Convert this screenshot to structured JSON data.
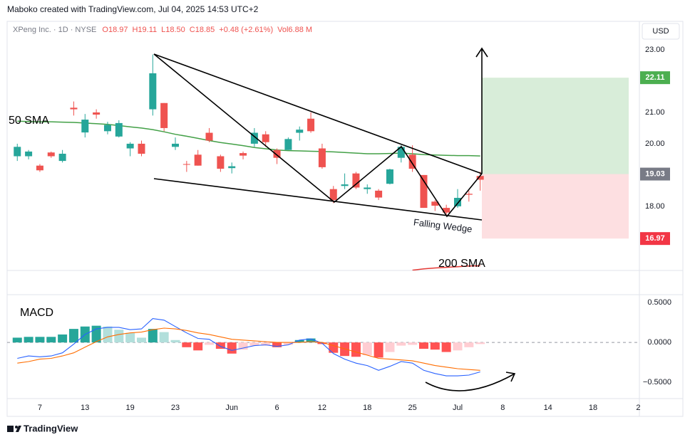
{
  "header": {
    "credit": "Maboko created with TradingView.com, Jul 04, 2025 14:53 UTC+2",
    "currency": "USD",
    "footer": "TradingView"
  },
  "chart_data": [
    {
      "type": "candlestick",
      "title": "XPeng Inc. · 1D · NYSE",
      "legend": [
        "O18.97",
        "H19.11",
        "L18.50",
        "C18.85",
        "+0.48 (+2.61%)",
        "Vol6.88 M"
      ],
      "up_color": "#26a69a",
      "down_color": "#ef5350",
      "open": [
        19.6,
        19.6,
        19.3,
        19.72,
        19.45,
        21.15,
        20.36,
        21.0,
        20.4,
        20.23,
        19.85,
        20.0,
        21.1,
        21.3,
        19.9,
        19.35,
        19.65,
        20.35,
        19.6,
        19.22,
        19.7,
        20.0,
        20.3,
        19.8,
        19.8,
        20.35,
        20.8,
        19.85,
        18.55,
        18.65,
        19.05,
        18.55,
        18.5,
        18.72,
        19.55,
        19.65,
        19.0,
        18.15,
        17.95,
        18.0,
        18.4,
        18.97
      ],
      "high": [
        20.0,
        19.8,
        19.35,
        19.75,
        19.8,
        21.35,
        20.95,
        21.1,
        20.7,
        20.75,
        20.05,
        20.1,
        22.85,
        21.3,
        20.2,
        19.45,
        19.8,
        20.5,
        19.65,
        19.4,
        19.75,
        20.5,
        20.4,
        19.85,
        20.2,
        20.55,
        21.0,
        20.0,
        18.65,
        19.05,
        19.1,
        18.7,
        18.55,
        19.2,
        19.95,
        19.95,
        19.0,
        18.2,
        18.05,
        18.55,
        18.5,
        19.11
      ],
      "low": [
        19.45,
        19.5,
        19.1,
        19.55,
        19.4,
        20.9,
        20.2,
        20.8,
        20.3,
        20.2,
        19.6,
        19.6,
        20.9,
        20.4,
        19.8,
        19.1,
        19.3,
        20.05,
        19.1,
        19.05,
        19.5,
        19.9,
        19.9,
        19.35,
        19.8,
        20.1,
        20.35,
        19.2,
        18.1,
        18.55,
        18.55,
        18.4,
        18.2,
        18.7,
        19.4,
        19.1,
        17.95,
        17.85,
        17.7,
        17.95,
        18.15,
        18.5
      ],
      "close": [
        19.9,
        19.75,
        19.15,
        19.6,
        19.68,
        21.1,
        20.77,
        20.93,
        20.6,
        20.66,
        20.0,
        19.68,
        22.25,
        20.5,
        20.0,
        19.33,
        19.3,
        20.1,
        19.2,
        19.28,
        19.62,
        20.35,
        20.05,
        19.55,
        20.15,
        20.45,
        20.4,
        19.25,
        18.2,
        18.7,
        18.6,
        18.6,
        18.28,
        19.18,
        19.9,
        19.2,
        17.95,
        18.02,
        17.8,
        18.27,
        18.37,
        18.85
      ],
      "series": [
        {
          "name": "50 SMA",
          "color": "#43a047",
          "values": [
            20.72,
            20.71,
            20.7,
            20.7,
            20.69,
            20.68,
            20.66,
            20.64,
            20.62,
            20.58,
            20.54,
            20.5,
            20.45,
            20.38,
            20.3,
            20.24,
            20.17,
            20.1,
            20.04,
            19.99,
            19.94,
            19.88,
            19.84,
            19.8,
            19.78,
            19.77,
            19.76,
            19.75,
            19.74,
            19.72,
            19.7,
            19.68,
            19.68,
            19.69,
            19.7,
            19.68,
            19.65,
            19.64,
            19.63,
            19.62,
            19.62,
            19.61
          ]
        },
        {
          "name": "200 SMA",
          "color": "#e53935",
          "values": [
            null,
            null,
            null,
            null,
            null,
            null,
            null,
            null,
            null,
            null,
            null,
            null,
            null,
            null,
            null,
            null,
            null,
            null,
            null,
            null,
            null,
            null,
            null,
            null,
            null,
            null,
            null,
            null,
            null,
            null,
            null,
            null,
            null,
            null,
            null,
            15.96,
            16.0,
            16.03,
            16.05,
            16.07,
            16.09,
            16.1
          ]
        }
      ],
      "levels": [
        22.11,
        19.03,
        16.97
      ],
      "level_colors": [
        "#4caf50",
        "#787b86",
        "#f23645"
      ],
      "annotations": [
        "Falling Wedge"
      ],
      "ylim": [
        15.95,
        23.91
      ],
      "yticks": [
        {
          "value": 18,
          "label": "18.00"
        },
        {
          "value": 20,
          "label": "20.00"
        },
        {
          "value": 21,
          "label": "21.00"
        },
        {
          "value": 23,
          "label": "23.00"
        }
      ]
    },
    {
      "type": "macd",
      "title": "MACD",
      "histogram": [
        0.06,
        0.07,
        0.07,
        0.07,
        0.1,
        0.17,
        0.2,
        0.21,
        0.2,
        0.16,
        0.12,
        0.06,
        0.17,
        0.13,
        0.03,
        -0.06,
        -0.1,
        -0.03,
        -0.08,
        -0.14,
        -0.09,
        -0.04,
        -0.04,
        -0.06,
        -0.03,
        0.03,
        0.05,
        -0.02,
        -0.13,
        -0.17,
        -0.18,
        -0.16,
        -0.19,
        -0.12,
        -0.04,
        -0.03,
        -0.08,
        -0.09,
        -0.12,
        -0.1,
        -0.06,
        -0.02
      ],
      "histogram_colors": [
        "#26a69a",
        "#b2dfdb",
        "#ffcdd2",
        "#ff5252"
      ],
      "series": [
        {
          "color": "#2962ff",
          "values": [
            -0.2,
            -0.17,
            -0.18,
            -0.17,
            -0.13,
            -0.02,
            0.1,
            0.17,
            0.19,
            0.19,
            0.16,
            0.17,
            0.3,
            0.28,
            0.2,
            0.12,
            0.05,
            0.04,
            -0.05,
            -0.1,
            -0.07,
            -0.04,
            -0.03,
            -0.05,
            -0.03,
            0.03,
            0.045,
            -0.01,
            -0.14,
            -0.21,
            -0.26,
            -0.29,
            -0.35,
            -0.3,
            -0.24,
            -0.26,
            -0.35,
            -0.39,
            -0.42,
            -0.42,
            -0.41,
            -0.37
          ]
        },
        {
          "color": "#ff6d00",
          "values": [
            -0.26,
            -0.24,
            -0.21,
            -0.2,
            -0.17,
            -0.13,
            -0.06,
            0.01,
            0.07,
            0.1,
            0.12,
            0.13,
            0.16,
            0.18,
            0.17,
            0.15,
            0.12,
            0.1,
            0.07,
            0.04,
            0.03,
            0.02,
            0.01,
            0,
            0,
            0,
            0.01,
            0,
            -0.04,
            -0.08,
            -0.12,
            -0.16,
            -0.2,
            -0.21,
            -0.22,
            -0.23,
            -0.26,
            -0.29,
            -0.31,
            -0.33,
            -0.34,
            -0.35
          ]
        }
      ],
      "ylim": [
        -0.705,
        0.6
      ],
      "yticks": [
        {
          "value": -0.5,
          "label": "−0.5000"
        },
        {
          "value": 0,
          "label": "0.0000"
        },
        {
          "value": 0.5,
          "label": "0.5000"
        }
      ],
      "xlim": [
        -0.9,
        55.1
      ],
      "xticks": [
        {
          "value": 2,
          "label": "7"
        },
        {
          "value": 6,
          "label": "13"
        },
        {
          "value": 10,
          "label": "19"
        },
        {
          "value": 14,
          "label": "23"
        },
        {
          "value": 19,
          "label": "Jun"
        },
        {
          "value": 23,
          "label": "6"
        },
        {
          "value": 27,
          "label": "12"
        },
        {
          "value": 31,
          "label": "18"
        },
        {
          "value": 35,
          "label": "25"
        },
        {
          "value": 39,
          "label": "Jul"
        },
        {
          "value": 43,
          "label": "8"
        },
        {
          "value": 47,
          "label": "14"
        },
        {
          "value": 51,
          "label": "18"
        },
        {
          "value": 55,
          "label": "2"
        }
      ]
    }
  ]
}
